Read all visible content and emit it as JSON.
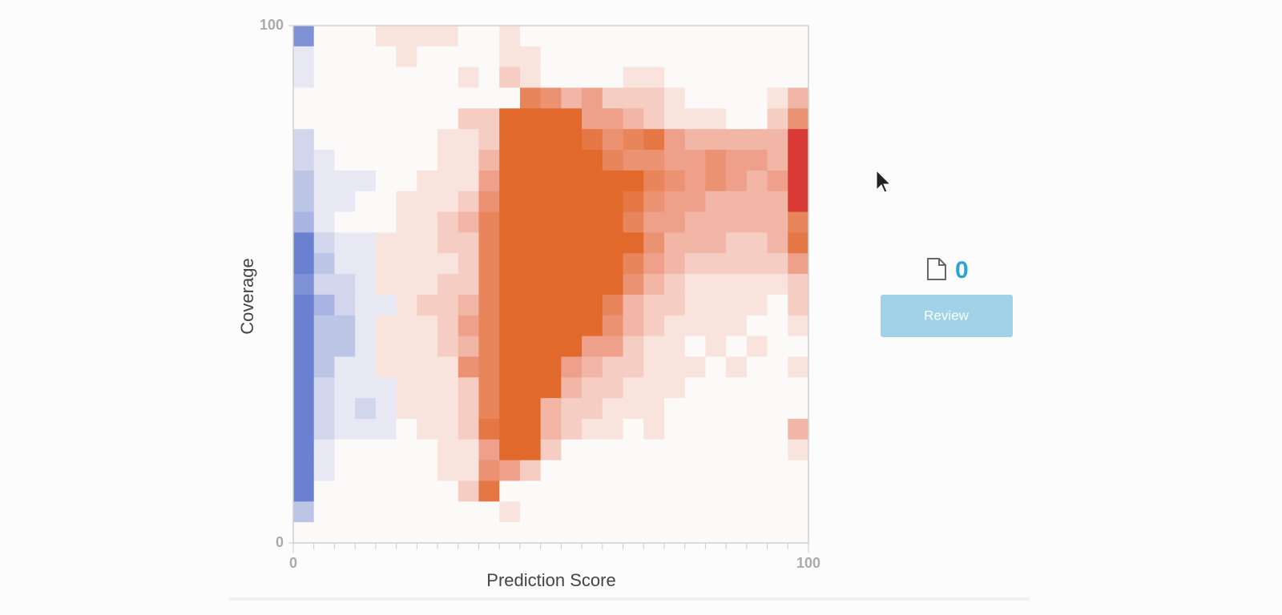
{
  "chart_data": {
    "type": "heatmap",
    "xlabel": "Prediction Score",
    "ylabel": "Coverage",
    "xlim": [
      0,
      100
    ],
    "ylim": [
      0,
      100
    ],
    "xticks": [
      0,
      100
    ],
    "yticks": [
      0,
      100
    ],
    "colorscale": [
      [
        -7,
        "#6a80d0"
      ],
      [
        0,
        "#fcf9f9"
      ],
      [
        4,
        "#eea08a"
      ],
      [
        8,
        "#e2692c"
      ],
      [
        9,
        "#d93a36"
      ]
    ],
    "z": [
      [
        -6,
        0,
        0,
        0,
        1,
        1,
        1,
        1,
        0,
        0,
        1,
        0,
        0,
        0,
        0,
        0,
        0,
        0,
        0,
        0,
        0,
        0,
        0,
        0,
        0
      ],
      [
        -1,
        0,
        0,
        0,
        0,
        1,
        0,
        0,
        0,
        0,
        1,
        1,
        0,
        0,
        0,
        0,
        0,
        0,
        0,
        0,
        0,
        0,
        0,
        0,
        0
      ],
      [
        -1,
        0,
        0,
        0,
        0,
        0,
        0,
        0,
        1,
        0,
        2,
        1,
        0,
        0,
        0,
        0,
        1,
        1,
        0,
        0,
        0,
        0,
        0,
        0,
        0
      ],
      [
        0,
        0,
        0,
        0,
        0,
        0,
        0,
        0,
        0,
        0,
        0,
        6,
        5,
        3,
        4,
        2,
        2,
        2,
        1,
        0,
        0,
        0,
        0,
        1,
        3
      ],
      [
        0,
        0,
        0,
        0,
        0,
        0,
        0,
        0,
        2,
        2,
        8,
        8,
        8,
        8,
        4,
        4,
        3,
        2,
        1,
        1,
        1,
        0,
        0,
        2,
        5
      ],
      [
        -2,
        0,
        0,
        0,
        0,
        0,
        0,
        1,
        1,
        2,
        8,
        8,
        8,
        8,
        7,
        5,
        6,
        7,
        4,
        3,
        3,
        3,
        3,
        3,
        9
      ],
      [
        -2,
        -1,
        0,
        0,
        0,
        0,
        0,
        1,
        1,
        3,
        8,
        8,
        8,
        8,
        8,
        6,
        5,
        5,
        4,
        4,
        5,
        4,
        4,
        3,
        9
      ],
      [
        -3,
        -1,
        -1,
        -1,
        0,
        0,
        1,
        1,
        1,
        4,
        8,
        8,
        8,
        8,
        8,
        8,
        8,
        6,
        5,
        4,
        5,
        4,
        3,
        4,
        9
      ],
      [
        -3,
        -1,
        -1,
        0,
        0,
        1,
        1,
        1,
        2,
        5,
        8,
        8,
        8,
        8,
        8,
        8,
        7,
        5,
        4,
        4,
        3,
        3,
        3,
        3,
        9
      ],
      [
        -4,
        -1,
        0,
        0,
        0,
        1,
        1,
        2,
        3,
        6,
        8,
        8,
        8,
        8,
        8,
        8,
        6,
        4,
        4,
        3,
        3,
        3,
        3,
        3,
        6
      ],
      [
        -7,
        -2,
        -1,
        -1,
        1,
        1,
        1,
        2,
        2,
        6,
        8,
        8,
        8,
        8,
        8,
        8,
        8,
        5,
        3,
        3,
        3,
        2,
        2,
        3,
        7
      ],
      [
        -7,
        -3,
        -1,
        -1,
        1,
        1,
        1,
        1,
        2,
        6,
        8,
        8,
        8,
        8,
        8,
        8,
        6,
        4,
        3,
        2,
        2,
        2,
        2,
        2,
        4
      ],
      [
        -6,
        -2,
        -2,
        -1,
        1,
        1,
        1,
        2,
        2,
        6,
        8,
        8,
        8,
        8,
        8,
        8,
        5,
        3,
        2,
        1,
        1,
        1,
        1,
        1,
        2
      ],
      [
        -7,
        -4,
        -2,
        -1,
        -1,
        1,
        2,
        2,
        3,
        6,
        8,
        8,
        8,
        8,
        8,
        6,
        3,
        2,
        2,
        1,
        1,
        1,
        1,
        0,
        2
      ],
      [
        -7,
        -3,
        -3,
        -1,
        1,
        1,
        1,
        2,
        4,
        6,
        8,
        8,
        8,
        8,
        8,
        5,
        3,
        2,
        1,
        1,
        1,
        1,
        0,
        0,
        1
      ],
      [
        -7,
        -3,
        -3,
        -1,
        1,
        1,
        1,
        2,
        3,
        6,
        8,
        8,
        8,
        8,
        4,
        4,
        2,
        1,
        1,
        0,
        1,
        0,
        1,
        0,
        0
      ],
      [
        -7,
        -3,
        -1,
        -1,
        1,
        1,
        1,
        1,
        5,
        6,
        8,
        8,
        8,
        4,
        3,
        2,
        2,
        1,
        1,
        1,
        0,
        1,
        0,
        0,
        1
      ],
      [
        -7,
        -2,
        -1,
        -1,
        -1,
        1,
        1,
        1,
        2,
        6,
        8,
        8,
        8,
        3,
        2,
        2,
        1,
        1,
        1,
        0,
        0,
        0,
        0,
        0,
        0
      ],
      [
        -7,
        -2,
        -1,
        -2,
        -1,
        1,
        1,
        1,
        2,
        6,
        8,
        8,
        3,
        2,
        2,
        1,
        1,
        1,
        0,
        0,
        0,
        0,
        0,
        0,
        0
      ],
      [
        -7,
        -2,
        -1,
        -1,
        -1,
        0,
        1,
        1,
        2,
        7,
        8,
        8,
        3,
        2,
        1,
        1,
        0,
        1,
        0,
        0,
        0,
        0,
        0,
        0,
        3
      ],
      [
        -7,
        -1,
        0,
        0,
        0,
        0,
        0,
        1,
        1,
        4,
        8,
        8,
        2,
        0,
        0,
        0,
        0,
        0,
        0,
        0,
        0,
        0,
        0,
        0,
        1
      ],
      [
        -7,
        -1,
        0,
        0,
        0,
        0,
        0,
        1,
        1,
        5,
        4,
        2,
        0,
        0,
        0,
        0,
        0,
        0,
        0,
        0,
        0,
        0,
        0,
        0,
        0
      ],
      [
        -7,
        0,
        0,
        0,
        0,
        0,
        0,
        0,
        2,
        7,
        0,
        0,
        0,
        0,
        0,
        0,
        0,
        0,
        0,
        0,
        0,
        0,
        0,
        0,
        0
      ],
      [
        -3,
        0,
        0,
        0,
        0,
        0,
        0,
        0,
        0,
        0,
        1,
        0,
        0,
        0,
        0,
        0,
        0,
        0,
        0,
        0,
        0,
        0,
        0,
        0,
        0
      ],
      [
        0,
        0,
        0,
        0,
        0,
        0,
        0,
        0,
        0,
        0,
        0,
        0,
        0,
        0,
        0,
        0,
        0,
        0,
        0,
        0,
        0,
        0,
        0,
        0,
        0
      ]
    ]
  },
  "panel": {
    "count": "0",
    "button": "Review"
  }
}
